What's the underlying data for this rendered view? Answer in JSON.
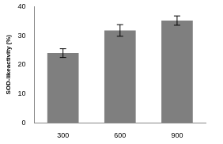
{
  "chart_data": {
    "type": "bar",
    "y_label": "SOD-likeactivity (%)",
    "categories": [
      "300",
      "600",
      "900"
    ],
    "values": [
      24,
      31.8,
      35.2
    ],
    "errors": [
      1.5,
      2,
      1.6
    ],
    "color": "#7f7f7f",
    "ylim": [
      0,
      40
    ],
    "yticks": [
      0,
      10,
      20,
      30,
      40
    ],
    "grid": false
  }
}
